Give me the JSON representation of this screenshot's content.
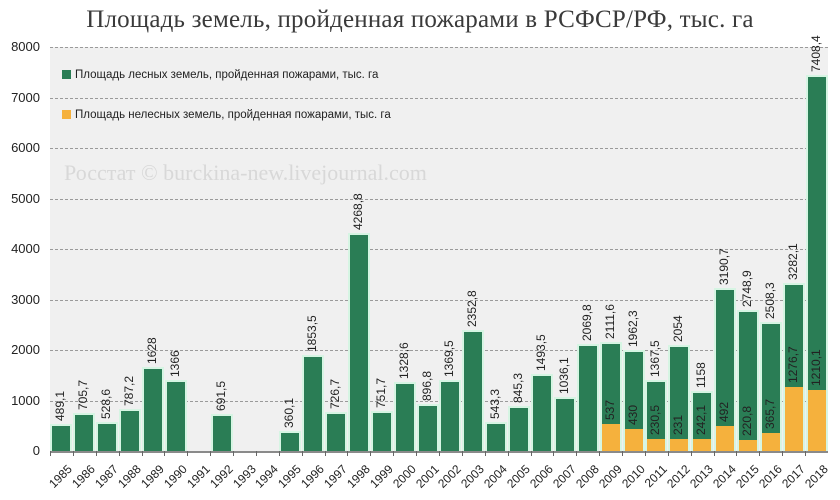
{
  "title": "Площадь земель, пройденная пожарами в РСФСР/РФ, тыс. га",
  "watermark": "Росстат © burckina-new.livejournal.com",
  "legend": [
    {
      "label": "Площадь лесных земель, пройденная пожарами, тыс. га",
      "color": "#2a7d55"
    },
    {
      "label": "Площадь нелесных земель, пройденная пожарами, тыс. га",
      "color": "#f5b13d"
    }
  ],
  "colors": {
    "forest": "#2a7d55",
    "nonforest": "#f5b13d",
    "plot_bg": "#f0f0f0"
  },
  "yticks": [
    "0",
    "1000",
    "2000",
    "3000",
    "4000",
    "5000",
    "6000",
    "7000",
    "8000"
  ],
  "chart_data": {
    "type": "bar",
    "stacked": true,
    "title": "Площадь земель, пройденная пожарами в РСФСР/РФ, тыс. га",
    "xlabel": "",
    "ylabel": "",
    "ylim": [
      0,
      8000
    ],
    "grid": true,
    "legend_position": "top-left",
    "categories": [
      "1985",
      "1986",
      "1987",
      "1988",
      "1989",
      "1990",
      "1991",
      "1992",
      "1993",
      "1994",
      "1995",
      "1996",
      "1997",
      "1998",
      "1999",
      "2000",
      "2001",
      "2002",
      "2003",
      "2004",
      "2005",
      "2006",
      "2007",
      "2008",
      "2009",
      "2010",
      "2011",
      "2012",
      "2013",
      "2014",
      "2015",
      "2016",
      "2017",
      "2018"
    ],
    "series": [
      {
        "name": "Площадь нелесных земель, пройденная пожарами, тыс. га",
        "values": [
          null,
          null,
          null,
          null,
          null,
          null,
          null,
          null,
          null,
          null,
          null,
          null,
          null,
          null,
          null,
          null,
          null,
          null,
          null,
          null,
          null,
          null,
          null,
          null,
          537,
          430,
          230.5,
          231,
          242.1,
          492,
          220.8,
          365.7,
          1276.7,
          1210.1
        ],
        "labels": [
          "",
          "",
          "",
          "",
          "",
          "",
          "",
          "",
          "",
          "",
          "",
          "",
          "",
          "",
          "",
          "",
          "",
          "",
          "",
          "",
          "",
          "",
          "",
          "",
          "537",
          "430",
          "230,5",
          "231",
          "242,1",
          "492",
          "220,8",
          "365,7",
          "1276,7",
          "1210,1"
        ]
      },
      {
        "name": "Площадь лесных земель, пройденная пожарами, тыс. га",
        "totals": [
          489.1,
          705.7,
          528.6,
          787.2,
          1628,
          1366,
          null,
          691.5,
          null,
          null,
          360.1,
          1853.5,
          726.7,
          4268.8,
          751.7,
          1328.6,
          896.8,
          1369.5,
          2352.8,
          543.3,
          845.3,
          1493.5,
          1036.1,
          2069.8,
          2111.6,
          1962.3,
          1367.5,
          2054,
          1158,
          3190.7,
          2748.9,
          2508.3,
          3282.1,
          7408.4
        ],
        "total_labels": [
          "489,1",
          "705,7",
          "528,6",
          "787,2",
          "1628",
          "1366",
          "",
          "691,5",
          "",
          "",
          "360,1",
          "1853,5",
          "726,7",
          "4268,8",
          "751,7",
          "1328,6",
          "896,8",
          "1369,5",
          "2352,8",
          "543,3",
          "845,3",
          "1493,5",
          "1036,1",
          "2069,8",
          "2111,6",
          "1962,3",
          "1367,5",
          "2054",
          "1158",
          "3190,7",
          "2748,9",
          "2508,3",
          "3282,1",
          "7408,4"
        ]
      }
    ],
    "notes": "From 2009 the bars are stacked: orange (non-forest) at bottom with its value printed inside the green segment; the label above each bar is the total."
  }
}
